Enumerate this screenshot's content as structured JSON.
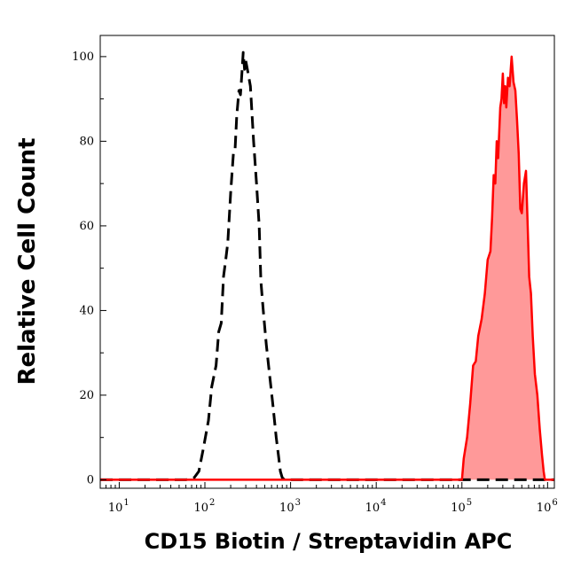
{
  "chart_data": {
    "type": "area",
    "title": "",
    "xlabel": "CD15 Biotin / Streptavidin APC",
    "ylabel": "Relative Cell Count",
    "x_scale": "log",
    "xlim": [
      6,
      1200000
    ],
    "ylim": [
      -2,
      105
    ],
    "x_ticks": [
      {
        "value": 10,
        "base": "10",
        "exp": "1"
      },
      {
        "value": 100,
        "base": "10",
        "exp": "2"
      },
      {
        "value": 1000,
        "base": "10",
        "exp": "3"
      },
      {
        "value": 10000,
        "base": "10",
        "exp": "4"
      },
      {
        "value": 100000,
        "base": "10",
        "exp": "5"
      },
      {
        "value": 1000000,
        "base": "10",
        "exp": "6"
      }
    ],
    "y_ticks": [
      0,
      20,
      40,
      60,
      80,
      100
    ],
    "grid": false,
    "series": [
      {
        "style": "dashed",
        "color": "#000000",
        "fill": "none",
        "points": [
          [
            6,
            0
          ],
          [
            60,
            0
          ],
          [
            75,
            0.5
          ],
          [
            85,
            2
          ],
          [
            95,
            7
          ],
          [
            110,
            14
          ],
          [
            120,
            22
          ],
          [
            135,
            27
          ],
          [
            145,
            35
          ],
          [
            155,
            37
          ],
          [
            165,
            48
          ],
          [
            175,
            52
          ],
          [
            185,
            56
          ],
          [
            200,
            68
          ],
          [
            215,
            77
          ],
          [
            225,
            78
          ],
          [
            235,
            86
          ],
          [
            250,
            92
          ],
          [
            260,
            91
          ],
          [
            270,
            96
          ],
          [
            280,
            101
          ],
          [
            290,
            97
          ],
          [
            300,
            99
          ],
          [
            320,
            96
          ],
          [
            340,
            93
          ],
          [
            370,
            80
          ],
          [
            400,
            70
          ],
          [
            430,
            60
          ],
          [
            450,
            47
          ],
          [
            480,
            40
          ],
          [
            520,
            32
          ],
          [
            560,
            26
          ],
          [
            620,
            18
          ],
          [
            680,
            10
          ],
          [
            720,
            6
          ],
          [
            760,
            2
          ],
          [
            800,
            0.5
          ],
          [
            850,
            0
          ],
          [
            1200000,
            0
          ]
        ]
      },
      {
        "style": "solid",
        "color": "#ff0000",
        "fill": "#ff9999",
        "points": [
          [
            6,
            0
          ],
          [
            100000,
            0
          ],
          [
            105000,
            5
          ],
          [
            115000,
            10
          ],
          [
            125000,
            18
          ],
          [
            135000,
            27
          ],
          [
            145000,
            28
          ],
          [
            155000,
            34
          ],
          [
            170000,
            38
          ],
          [
            185000,
            44
          ],
          [
            200000,
            52
          ],
          [
            215000,
            54
          ],
          [
            225000,
            62
          ],
          [
            235000,
            72
          ],
          [
            245000,
            70
          ],
          [
            255000,
            80
          ],
          [
            265000,
            76
          ],
          [
            280000,
            88
          ],
          [
            290000,
            90
          ],
          [
            300000,
            96
          ],
          [
            310000,
            89
          ],
          [
            320000,
            93
          ],
          [
            330000,
            88
          ],
          [
            345000,
            95
          ],
          [
            360000,
            93
          ],
          [
            380000,
            100
          ],
          [
            400000,
            94
          ],
          [
            420000,
            92
          ],
          [
            440000,
            85
          ],
          [
            460000,
            77
          ],
          [
            480000,
            64
          ],
          [
            500000,
            63
          ],
          [
            530000,
            70
          ],
          [
            560000,
            73
          ],
          [
            590000,
            58
          ],
          [
            610000,
            48
          ],
          [
            640000,
            44
          ],
          [
            670000,
            34
          ],
          [
            710000,
            25
          ],
          [
            760000,
            20
          ],
          [
            810000,
            12
          ],
          [
            860000,
            6
          ],
          [
            900000,
            2
          ],
          [
            930000,
            0
          ],
          [
            1200000,
            0
          ]
        ]
      }
    ]
  }
}
